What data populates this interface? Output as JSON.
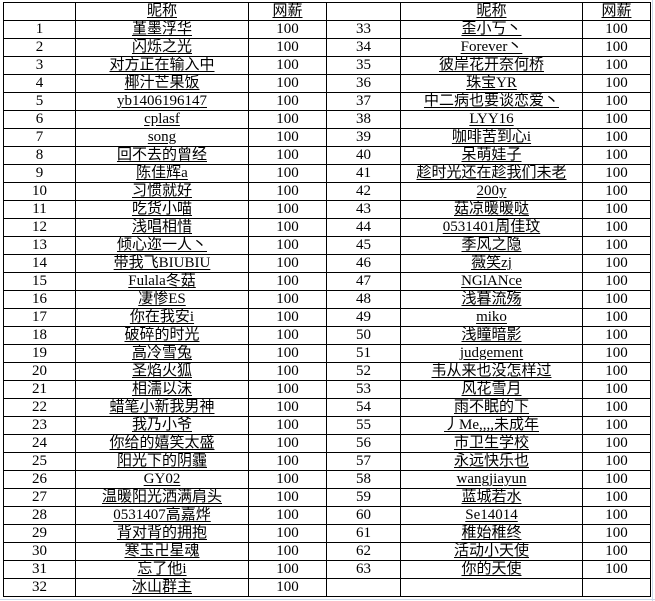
{
  "window": {
    "background": "#ffffff",
    "gridline_color": "#ccd9ea",
    "border_color": "#000000",
    "text_color": "#000000"
  },
  "table": {
    "header_labels": [
      "",
      "昵称",
      "网薪",
      "",
      "昵称",
      "网薪"
    ],
    "rows": [
      [
        "1",
        "堇墨浮华",
        "100",
        "33",
        "歪小丂丶",
        "100"
      ],
      [
        "2",
        "闪烁之光",
        "100",
        "34",
        "Forever丶",
        "100"
      ],
      [
        "3",
        "对方正在输入中",
        "100",
        "35",
        "彼岸花开奈何桥",
        "100"
      ],
      [
        "4",
        "椰汁芒果饭",
        "100",
        "36",
        "珠宝YR",
        "100"
      ],
      [
        "5",
        "yb1406196147",
        "100",
        "37",
        "中二病也要谈恋爱丶",
        "100"
      ],
      [
        "6",
        "cplasf",
        "100",
        "38",
        "LYY16",
        "100"
      ],
      [
        "7",
        "song",
        "100",
        "39",
        "咖啡苦到心i",
        "100"
      ],
      [
        "8",
        "回不去的曾经",
        "100",
        "40",
        "呆萌娃子",
        "100"
      ],
      [
        "9",
        "陈佳辉a",
        "100",
        "41",
        "趁时光还在趁我们未老",
        "100"
      ],
      [
        "10",
        "习惯就好",
        "100",
        "42",
        "200y",
        "100"
      ],
      [
        "11",
        "吃货小喵",
        "100",
        "43",
        "菇凉暖暖哒",
        "100"
      ],
      [
        "12",
        "浅唱相惜",
        "100",
        "44",
        "0531401周佳玟",
        "100"
      ],
      [
        "13",
        "倾心迩一人丶",
        "100",
        "45",
        "季风之隐",
        "100"
      ],
      [
        "14",
        "带我飞BIUBIU",
        "100",
        "46",
        "薇笑zj",
        "100"
      ],
      [
        "15",
        "Fulala冬菇",
        "100",
        "47",
        "NGlANce",
        "100"
      ],
      [
        "16",
        "凄惨ES",
        "100",
        "48",
        "浅暮流殇",
        "100"
      ],
      [
        "17",
        "你在我安i",
        "100",
        "49",
        "miko",
        "100"
      ],
      [
        "18",
        "破碎的时光",
        "100",
        "50",
        "浅瞳暗影",
        "100"
      ],
      [
        "19",
        "高冷雪兔",
        "100",
        "51",
        "judgement",
        "100"
      ],
      [
        "20",
        "圣焰火狐",
        "100",
        "52",
        "韦从来也没怎样过",
        "100"
      ],
      [
        "21",
        "相濡以沫",
        "100",
        "53",
        "风花雪月",
        "100"
      ],
      [
        "22",
        "蜡笔小新我男神",
        "100",
        "54",
        "雨不眠的下",
        "100"
      ],
      [
        "23",
        "我乃小爷",
        "100",
        "55",
        "丿Me,,,,未成年",
        "100"
      ],
      [
        "24",
        "你给的嬉笑太盛",
        "100",
        "56",
        "市卫生学校",
        "100"
      ],
      [
        "25",
        "阳光下的阴霾",
        "100",
        "57",
        "永远快乐也",
        "100"
      ],
      [
        "26",
        "GY02",
        "100",
        "58",
        "wangjiayun",
        "100"
      ],
      [
        "27",
        "温暖阳光洒满肩头",
        "100",
        "59",
        "蓝城若水",
        "100"
      ],
      [
        "28",
        "0531407高嘉烨",
        "100",
        "60",
        "Se14014",
        "100"
      ],
      [
        "29",
        "背对背的拥抱",
        "100",
        "61",
        "稚始稚终",
        "100"
      ],
      [
        "30",
        "寒玉卍星魂",
        "100",
        "62",
        "活动小天使",
        "100"
      ],
      [
        "31",
        "忘了他i",
        "100",
        "63",
        "你的天使",
        "100"
      ],
      [
        "32",
        "冰山群主",
        "100",
        "",
        "",
        ""
      ]
    ]
  }
}
